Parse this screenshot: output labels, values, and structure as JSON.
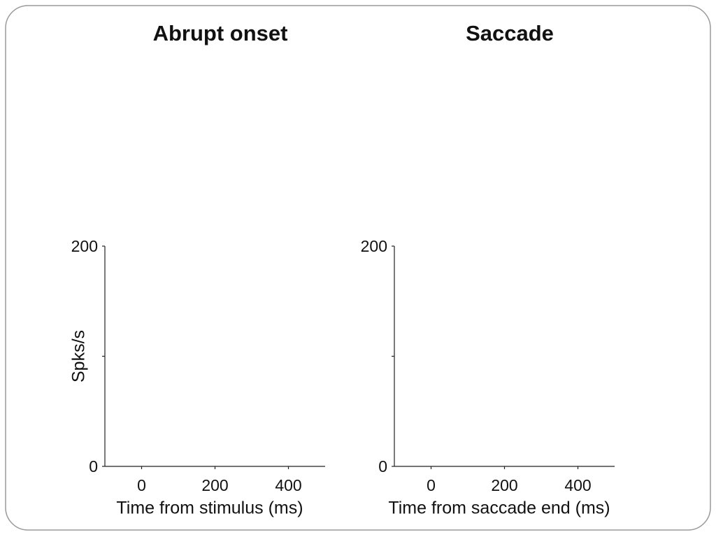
{
  "chart_data": [
    {
      "type": "line",
      "title": "Abrupt onset",
      "x_label": "Time from stimulus (ms)",
      "y_label": "Spks/s",
      "xlim": [
        -100,
        500
      ],
      "xticks": [
        0,
        200,
        400
      ],
      "ylim": [
        0,
        200
      ],
      "yticks": [
        0,
        {
          "value": 100,
          "label": null
        },
        200
      ]
    },
    {
      "type": "line",
      "title": "Saccade",
      "x_label": "Time from saccade end (ms)",
      "xlim": [
        -100,
        500
      ],
      "xticks": [
        0,
        200,
        400
      ],
      "ylim": [
        0,
        200
      ],
      "yticks": [
        0,
        {
          "value": 100,
          "label": null
        },
        200
      ]
    }
  ]
}
